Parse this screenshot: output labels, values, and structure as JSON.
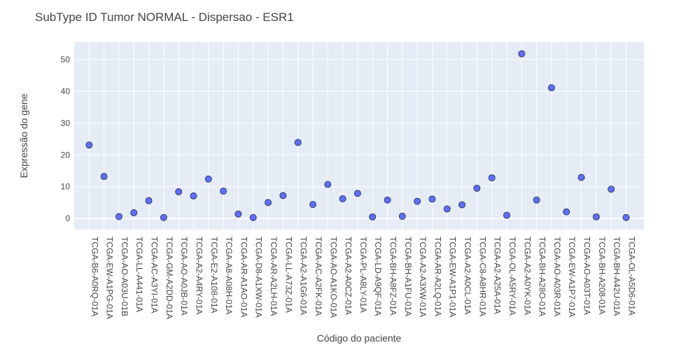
{
  "chart_data": {
    "type": "scatter",
    "title": "SubType ID Tumor NORMAL - Dispersao - ESR1",
    "xlabel": "Código do paciente",
    "ylabel": "Expressão do gene",
    "ylim": [
      -3.5,
      55.5
    ],
    "yticks": [
      0,
      10,
      20,
      30,
      40,
      50
    ],
    "grid": true,
    "legend": "none",
    "colors": {
      "plot_bg": "#e5ecf6",
      "grid": "#ffffff",
      "marker": "#636efa",
      "marker_line": "#2a3f5f"
    },
    "categories": [
      "TCGA-B6-A0RQ-01A",
      "TCGA-EW-A1PG-01A",
      "TCGA-AO-A03U-01B",
      "TCGA-LL-A441-01A",
      "TCGA-AC-A3YI-01A",
      "TCGA-GM-A2DD-01A",
      "TCGA-AO-A0JB-01A",
      "TCGA-A2-A4RY-01A",
      "TCGA-E2-A108-01A",
      "TCGA-A8-A08H-01A",
      "TCGA-AR-A1AO-01A",
      "TCGA-D8-A1XW-01A",
      "TCGA-AR-A2LH-01A",
      "TCGA-LL-A73Z-01A",
      "TCGA-A2-A1G6-01A",
      "TCGA-AC-A2FK-01A",
      "TCGA-AO-A1KO-01A",
      "TCGA-A2-A0CZ-01A",
      "TCGA-PL-A8LY-01A",
      "TCGA-LD-A9QF-01A",
      "TCGA-BH-A8FZ-01A",
      "TCGA-BH-A1FU-01A",
      "TCGA-A2-A3XW-01A",
      "TCGA-AR-A2LQ-01A",
      "TCGA-EW-A1P1-01A",
      "TCGA-A2-A0CL-01A",
      "TCGA-C8-A8HR-01A",
      "TCGA-A2-A25A-01A",
      "TCGA-OL-A5RY-01A",
      "TCGA-A2-A0YK-01A",
      "TCGA-BH-A28O-01A",
      "TCGA-AO-A03R-01A",
      "TCGA-EW-A1P7-01A",
      "TCGA-AO-A03T-01A",
      "TCGA-BH-A208-01A",
      "TCGA-BH-A42U-01A",
      "TCGA-OL-A5D6-01A"
    ],
    "values": [
      23.1,
      13.2,
      0.6,
      1.8,
      5.6,
      0.3,
      8.4,
      7.1,
      12.4,
      8.6,
      1.4,
      0.3,
      5.0,
      7.2,
      23.9,
      4.4,
      10.7,
      6.2,
      7.9,
      0.5,
      5.8,
      0.7,
      5.4,
      6.1,
      3.0,
      4.3,
      9.5,
      12.8,
      1.0,
      51.8,
      5.8,
      41.1,
      2.1,
      12.9,
      0.5,
      9.2,
      0.3
    ]
  }
}
